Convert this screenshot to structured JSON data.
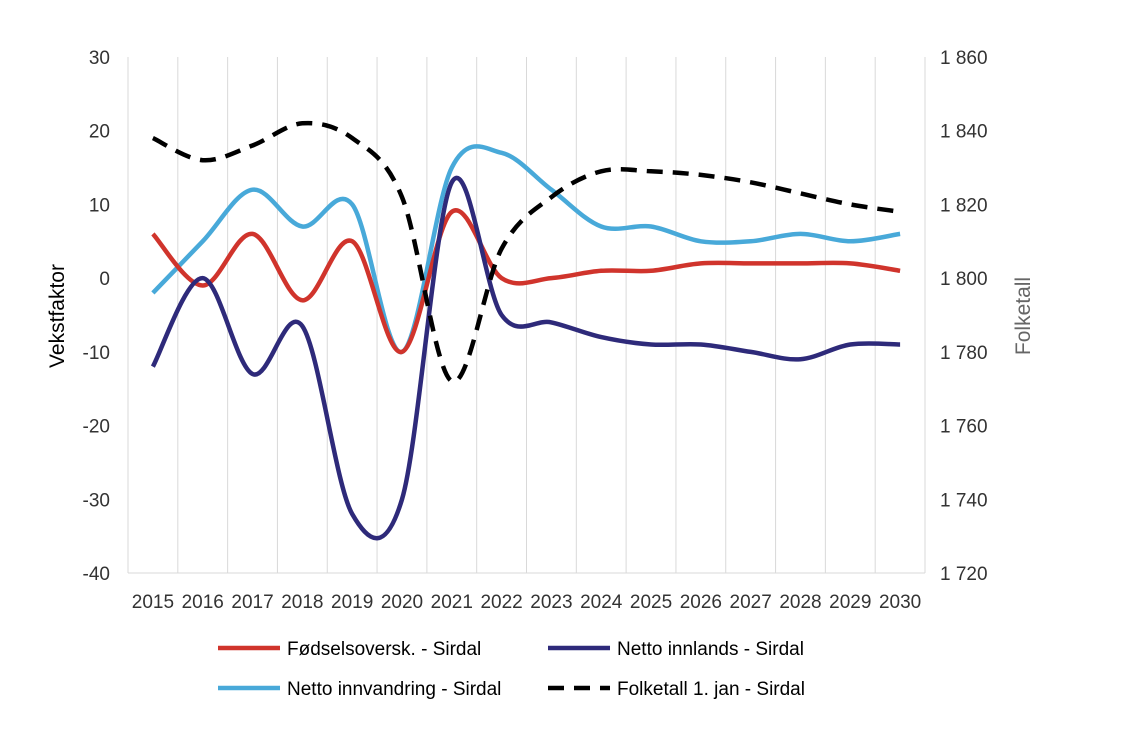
{
  "chart_data": {
    "type": "line",
    "title": "",
    "xlabel": "",
    "ylabel": "Vekstfaktor",
    "ylabel_right": "Folketall",
    "x": [
      "2015",
      "2016",
      "2017",
      "2018",
      "2019",
      "2020",
      "2021",
      "2022",
      "2023",
      "2024",
      "2025",
      "2026",
      "2027",
      "2028",
      "2029",
      "2030"
    ],
    "ylim": [
      -40,
      30
    ],
    "y_ticks": [
      "30",
      "20",
      "10",
      "0",
      "-10",
      "-20",
      "-30",
      "-40"
    ],
    "ylim_right": [
      1720,
      1860
    ],
    "y_right_ticks": [
      "1 860",
      "1 840",
      "1 820",
      "1 800",
      "1 780",
      "1 760",
      "1 740",
      "1 720"
    ],
    "grid": "vertical",
    "legend_position": "bottom",
    "series": [
      {
        "name": "Fødselsoversk. - Sirdal",
        "axis": "left",
        "color": "#d0342c",
        "dash": false,
        "values": [
          6,
          -1,
          6,
          -3,
          5,
          -10,
          9,
          0,
          0,
          1,
          1,
          2,
          2,
          2,
          2,
          1
        ]
      },
      {
        "name": "Netto innlands - Sirdal",
        "axis": "left",
        "color": "#2e2a7a",
        "dash": false,
        "values": [
          -12,
          0,
          -13,
          -6.5,
          -32,
          -30,
          13,
          -5,
          -6,
          -8,
          -9,
          -9,
          -10,
          -11,
          -9,
          -9
        ]
      },
      {
        "name": "Netto innvandring - Sirdal",
        "axis": "left",
        "color": "#48a9d9",
        "dash": false,
        "values": [
          -2,
          5,
          12,
          7,
          10,
          -10,
          15,
          17,
          12,
          7,
          7,
          5,
          5,
          6,
          5,
          6
        ]
      },
      {
        "name": "Folketall 1. jan - Sirdal",
        "axis": "right",
        "color": "#000000",
        "dash": true,
        "values": [
          1838,
          1832,
          1836,
          1842,
          1838,
          1822,
          1772,
          1808,
          1822,
          1829,
          1829,
          1828,
          1826,
          1823,
          1820,
          1818
        ]
      }
    ]
  }
}
